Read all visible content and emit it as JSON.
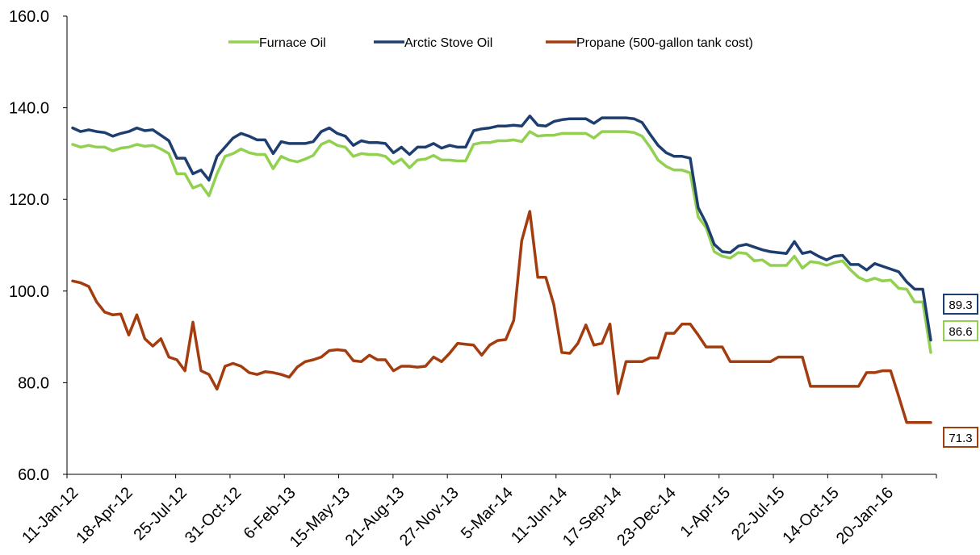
{
  "chart_data": {
    "type": "line",
    "title": "",
    "xlabel": "",
    "ylabel": "",
    "ylim": [
      60,
      160
    ],
    "yticks": [
      "60.0",
      "80.0",
      "100.0",
      "120.0",
      "140.0",
      "160.0"
    ],
    "xticks": [
      "11-Jan-12",
      "18-Apr-12",
      "25-Jul-12",
      "31-Oct-12",
      "6-Feb-13",
      "15-May-13",
      "21-Aug-13",
      "27-Nov-13",
      "5-Mar-14",
      "11-Jun-14",
      "17-Sep-14",
      "23-Dec-14",
      "1-Apr-15",
      "22-Jul-15",
      "14-Oct-15",
      "20-Jan-16"
    ],
    "legend_position": "top-center",
    "grid": false,
    "series": [
      {
        "name": "Furnace Oil",
        "color": "#92d050",
        "end_label": "86.6",
        "values": [
          132.0,
          131.4,
          131.8,
          131.4,
          131.4,
          130.6,
          131.2,
          131.4,
          132.0,
          131.6,
          131.8,
          131.0,
          130.0,
          125.6,
          125.6,
          122.5,
          123.2,
          120.8,
          125.6,
          129.4,
          130.0,
          131.0,
          130.2,
          129.8,
          129.8,
          126.7,
          129.4,
          128.6,
          128.2,
          128.8,
          129.6,
          132.0,
          132.8,
          131.8,
          131.4,
          129.4,
          130.0,
          129.8,
          129.8,
          129.4,
          127.8,
          128.8,
          126.9,
          128.6,
          128.8,
          129.6,
          128.6,
          128.6,
          128.4,
          128.4,
          132.0,
          132.4,
          132.4,
          132.8,
          132.8,
          133.0,
          132.6,
          134.8,
          133.8,
          134.0,
          134.0,
          134.4,
          134.4,
          134.4,
          134.4,
          133.4,
          134.8,
          134.8,
          134.8,
          134.8,
          134.6,
          133.8,
          131.4,
          128.6,
          127.2,
          126.4,
          126.4,
          125.8,
          116.2,
          113.8,
          108.6,
          107.6,
          107.2,
          108.4,
          108.2,
          106.6,
          106.8,
          105.6,
          105.6,
          105.6,
          107.6,
          105.0,
          106.4,
          106.2,
          105.6,
          106.2,
          106.6,
          104.6,
          103.0,
          102.2,
          102.8,
          102.2,
          102.4,
          100.6,
          100.4,
          97.6,
          97.6,
          86.6
        ]
      },
      {
        "name": "Arctic Stove Oil",
        "color": "#1f3e70",
        "end_label": "89.3",
        "values": [
          135.6,
          134.8,
          135.2,
          134.8,
          134.6,
          133.8,
          134.4,
          134.8,
          135.6,
          135.0,
          135.2,
          134.0,
          132.8,
          129.0,
          129.0,
          125.6,
          126.4,
          124.2,
          129.4,
          131.4,
          133.4,
          134.4,
          133.8,
          133.0,
          133.0,
          130.0,
          132.6,
          132.2,
          132.2,
          132.2,
          132.6,
          134.8,
          135.6,
          134.4,
          133.8,
          131.8,
          132.8,
          132.4,
          132.4,
          132.2,
          130.2,
          131.4,
          129.8,
          131.4,
          131.4,
          132.2,
          131.2,
          131.8,
          131.4,
          131.4,
          135.0,
          135.4,
          135.6,
          136.0,
          136.0,
          136.2,
          136.0,
          138.2,
          136.2,
          136.0,
          137.0,
          137.4,
          137.6,
          137.6,
          137.6,
          136.6,
          137.8,
          137.8,
          137.8,
          137.8,
          137.6,
          136.8,
          134.2,
          131.8,
          130.2,
          129.4,
          129.4,
          129.0,
          118.2,
          114.8,
          110.2,
          108.6,
          108.4,
          109.8,
          110.2,
          109.6,
          109.0,
          108.6,
          108.4,
          108.2,
          110.8,
          108.2,
          108.6,
          107.6,
          106.8,
          107.6,
          107.8,
          105.8,
          105.8,
          104.6,
          106.0,
          105.4,
          104.8,
          104.2,
          102.0,
          100.4,
          100.4,
          89.3
        ]
      },
      {
        "name": "Propane (500-gallon tank cost)",
        "color": "#a33d0f",
        "end_label": "71.3",
        "values": [
          102.2,
          101.8,
          101.0,
          97.6,
          95.4,
          94.8,
          95.0,
          90.4,
          94.8,
          89.6,
          88.0,
          89.6,
          85.6,
          85.0,
          82.6,
          93.2,
          82.6,
          81.8,
          78.6,
          83.6,
          84.2,
          83.6,
          82.2,
          81.8,
          82.4,
          82.2,
          81.8,
          81.2,
          83.4,
          84.6,
          85.0,
          85.6,
          87.0,
          87.2,
          87.0,
          84.8,
          84.6,
          86.0,
          85.0,
          85.0,
          82.6,
          83.6,
          83.6,
          83.4,
          83.6,
          85.6,
          84.6,
          86.4,
          88.6,
          88.4,
          88.2,
          86.0,
          88.2,
          89.2,
          89.4,
          93.6,
          111.0,
          117.4,
          103.0,
          103.0,
          97.0,
          86.6,
          86.4,
          88.6,
          92.6,
          88.2,
          88.6,
          92.8,
          77.6,
          84.6,
          84.6,
          84.6,
          85.4,
          85.4,
          90.8,
          90.8,
          92.8,
          92.8,
          90.4,
          87.8,
          87.8,
          87.8,
          84.6,
          84.6,
          84.6,
          84.6,
          84.6,
          84.6,
          85.6,
          85.6,
          85.6,
          85.6,
          79.2,
          79.2,
          79.2,
          79.2,
          79.2,
          79.2,
          79.2,
          82.2,
          82.2,
          82.6,
          82.6,
          77.0,
          71.3,
          71.3,
          71.3,
          71.3
        ]
      }
    ]
  }
}
